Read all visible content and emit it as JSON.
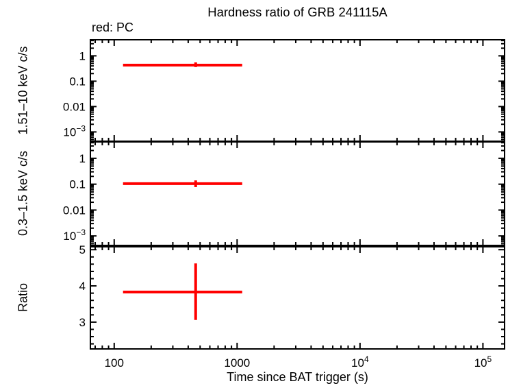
{
  "chart_data": {
    "type": "line",
    "title": "Hardness ratio of GRB 241115A",
    "legend": "red: PC",
    "xlabel": "Time since BAT trigger (s)",
    "series_name": "PC",
    "series_color": "#ff0000",
    "background_color": "#ffffff",
    "axis_color": "#000000",
    "xaxis": {
      "scale": "log",
      "lim": [
        64,
        150000
      ],
      "major_ticks": [
        100,
        1000,
        10000,
        100000
      ],
      "major_labels": [
        "100",
        "1000",
        "10^4",
        "10^5"
      ]
    },
    "panels": [
      {
        "name": "hard-band-rate",
        "ylabel": "1.51–10 keV c/s",
        "scale": "log",
        "lim": [
          0.00043,
          4.3
        ],
        "major_ticks": [
          1,
          0.1,
          0.01,
          0.001
        ],
        "major_labels": [
          "1",
          "0.1",
          "0.01",
          "10^-3"
        ],
        "points": [
          {
            "t": 460,
            "t_lo": 118,
            "t_hi": 1100,
            "value": 0.43,
            "value_lo": 0.36,
            "value_hi": 0.55
          }
        ]
      },
      {
        "name": "soft-band-rate",
        "ylabel": "0.3–1.5 keV c/s",
        "scale": "log",
        "lim": [
          0.00043,
          4.3
        ],
        "major_ticks": [
          1,
          0.1,
          0.01,
          0.001
        ],
        "major_labels": [
          "1",
          "0.1",
          "0.01",
          "10^-3"
        ],
        "points": [
          {
            "t": 460,
            "t_lo": 118,
            "t_hi": 1100,
            "value": 0.105,
            "value_lo": 0.077,
            "value_hi": 0.14
          }
        ]
      },
      {
        "name": "hardness-ratio",
        "ylabel": "Ratio",
        "scale": "linear",
        "lim": [
          2.26,
          5.08
        ],
        "minor_step": 0.2,
        "major_ticks": [
          3,
          4,
          5
        ],
        "major_labels": [
          "3",
          "4",
          "5"
        ],
        "points": [
          {
            "t": 460,
            "t_lo": 118,
            "t_hi": 1100,
            "value": 3.83,
            "value_lo": 3.06,
            "value_hi": 4.62
          }
        ]
      }
    ]
  }
}
